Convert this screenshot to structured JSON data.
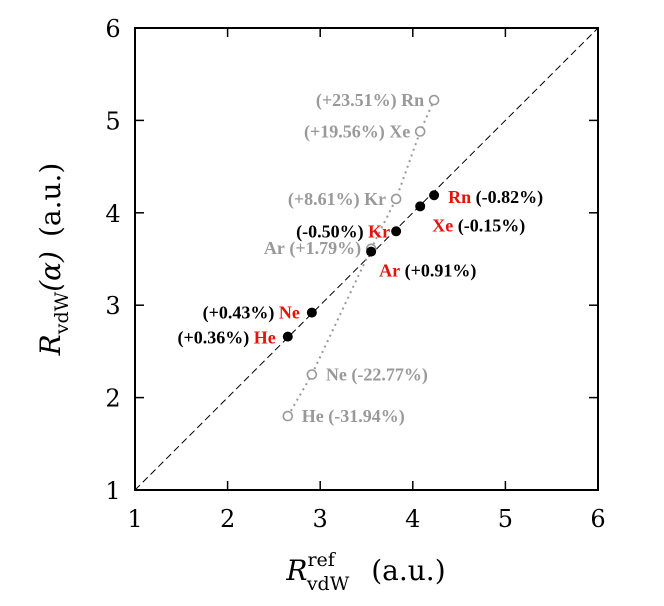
{
  "chart_data": {
    "type": "scatter",
    "xlabel": {
      "main": "R",
      "sup": "ref",
      "sub": "vdW",
      "unit": "(a.u.)"
    },
    "ylabel": {
      "main": "R",
      "sub": "vdW",
      "arg": "(α)",
      "unit": "(a.u.)"
    },
    "xlim": [
      1,
      6
    ],
    "ylim": [
      1,
      6
    ],
    "xticks": [
      "1",
      "2",
      "3",
      "4",
      "5",
      "6"
    ],
    "yticks": [
      "1",
      "2",
      "3",
      "4",
      "5",
      "6"
    ],
    "grid": false,
    "reference_line": "y = x (dashed)",
    "colors": {
      "element_red": "#e8120c",
      "filled": "#000000",
      "open": "#999999"
    },
    "series": [
      {
        "marker": "filled-circle",
        "points": [
          {
            "element": "He",
            "x": 2.65,
            "y": 2.66,
            "pct": "(+0.36%)"
          },
          {
            "element": "Ne",
            "x": 2.91,
            "y": 2.92,
            "pct": "(+0.43%)"
          },
          {
            "element": "Ar",
            "x": 3.55,
            "y": 3.58,
            "pct": "(+0.91%)"
          },
          {
            "element": "Kr",
            "x": 3.82,
            "y": 3.8,
            "pct": "(-0.50%)"
          },
          {
            "element": "Xe",
            "x": 4.08,
            "y": 4.07,
            "pct": "(-0.15%)"
          },
          {
            "element": "Rn",
            "x": 4.23,
            "y": 4.19,
            "pct": "(-0.82%)"
          }
        ]
      },
      {
        "marker": "open-circle",
        "points": [
          {
            "element": "He",
            "x": 2.65,
            "y": 1.8,
            "pct": "(-31.94%)"
          },
          {
            "element": "Ne",
            "x": 2.91,
            "y": 2.25,
            "pct": "(-22.77%)"
          },
          {
            "element": "Ar",
            "x": 3.55,
            "y": 3.61,
            "pct": "(+1.79%)"
          },
          {
            "element": "Kr",
            "x": 3.82,
            "y": 4.15,
            "pct": "(+8.61%)"
          },
          {
            "element": "Xe",
            "x": 4.08,
            "y": 4.88,
            "pct": "(+19.56%)"
          },
          {
            "element": "Rn",
            "x": 4.23,
            "y": 5.22,
            "pct": "(+23.51%)"
          }
        ]
      }
    ]
  }
}
